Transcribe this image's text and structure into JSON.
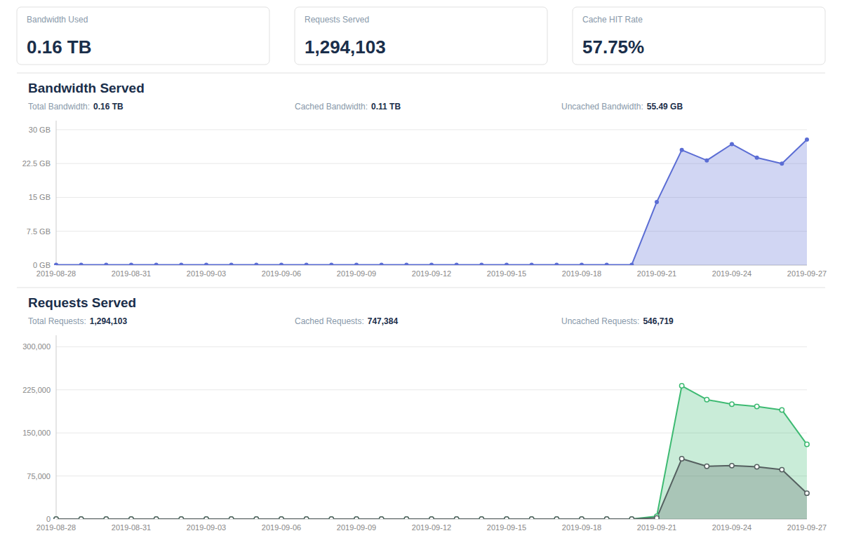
{
  "chart_data": [
    {
      "type": "area",
      "title": "Bandwidth Served",
      "annotations": [
        {
          "label": "Bandwidth Used",
          "value": "0.16 TB"
        },
        {
          "label": "Requests Served",
          "value": "1,294,103"
        },
        {
          "label": "Cache HIT Rate",
          "value": "57.75%"
        },
        {
          "label": "Total Bandwidth: ",
          "value": "0.16 TB"
        },
        {
          "label": "Cached Bandwidth: ",
          "value": "0.11 TB"
        },
        {
          "label": "Uncached Bandwidth: ",
          "value": "55.49 GB"
        }
      ],
      "categories": [
        "2019-08-28",
        null,
        null,
        "2019-08-31",
        null,
        null,
        "2019-09-03",
        null,
        null,
        "2019-09-06",
        null,
        null,
        "2019-09-09",
        null,
        null,
        "2019-09-12",
        null,
        null,
        "2019-09-15",
        null,
        null,
        "2019-09-18",
        null,
        null,
        "2019-09-21",
        null,
        null,
        "2019-09-24",
        null,
        null,
        "2019-09-27"
      ],
      "values": [
        0.08,
        0.08,
        0.08,
        0.08,
        0.08,
        0.08,
        0.08,
        0.08,
        0.08,
        0.08,
        0.08,
        0.08,
        0.08,
        0.08,
        0.08,
        0.08,
        0.08,
        0.08,
        0.08,
        0.08,
        0.08,
        0.08,
        0.08,
        0.08,
        14.0,
        25.5,
        23.2,
        26.8,
        23.8,
        22.5,
        27.8
      ],
      "color": "#5b6dd4",
      "marker": "circle",
      "ylim": [
        0,
        32
      ],
      "yticks": [
        {
          "value": 0,
          "label": "0 GB"
        },
        {
          "value": 7.5,
          "label": "7.5 GB"
        },
        {
          "value": 15,
          "label": "15 GB"
        },
        {
          "value": 22.5,
          "label": "22.5 GB"
        },
        {
          "value": 30,
          "label": "30 GB"
        }
      ],
      "grid": true
    },
    {
      "type": "area",
      "title": "Requests Served",
      "annotations": [
        {
          "label": "Total Requests: ",
          "value": "1,294,103"
        },
        {
          "label": "Cached Requests: ",
          "value": "747,384"
        },
        {
          "label": "Uncached Requests: ",
          "value": "546,719"
        }
      ],
      "categories": [
        "2019-08-28",
        null,
        null,
        "2019-08-31",
        null,
        null,
        "2019-09-03",
        null,
        null,
        "2019-09-06",
        null,
        null,
        "2019-09-09",
        null,
        null,
        "2019-09-12",
        null,
        null,
        "2019-09-15",
        null,
        null,
        "2019-09-18",
        null,
        null,
        "2019-09-21",
        null,
        null,
        "2019-09-24",
        null,
        null,
        "2019-09-27"
      ],
      "series": [
        {
          "color": "#3dba72",
          "marker": "open-circle",
          "values": [
            0,
            0,
            0,
            0,
            0,
            0,
            0,
            0,
            0,
            0,
            0,
            0,
            0,
            0,
            0,
            0,
            0,
            0,
            0,
            0,
            0,
            0,
            0,
            0,
            5000,
            232000,
            208000,
            200000,
            196000,
            190000,
            130000
          ]
        },
        {
          "color": "#556060",
          "marker": "open-circle",
          "values": [
            0,
            0,
            0,
            0,
            0,
            0,
            0,
            0,
            0,
            0,
            0,
            0,
            0,
            0,
            0,
            0,
            0,
            0,
            0,
            0,
            0,
            0,
            0,
            0,
            2000,
            105000,
            92000,
            93000,
            91000,
            86000,
            45000
          ]
        }
      ],
      "ylim": [
        0,
        320000
      ],
      "yticks": [
        0,
        {
          "value": 75000,
          "label": "75,000"
        },
        {
          "value": 150000,
          "label": "150,000"
        },
        {
          "value": 225000,
          "label": "225,000"
        },
        {
          "value": 300000,
          "label": "300,000"
        }
      ],
      "grid": true
    }
  ]
}
